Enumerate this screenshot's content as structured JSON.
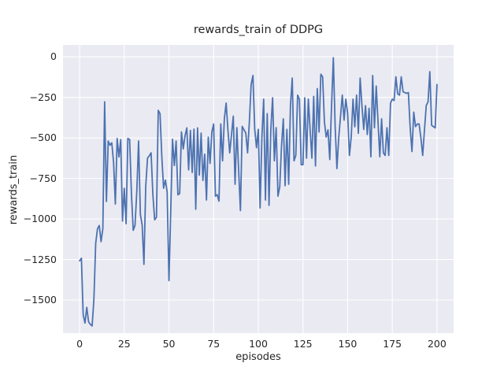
{
  "title": "rewards_train of DDPG",
  "x_axis_label": "episodes",
  "y_axis_label": "rewards_train",
  "colors": {
    "line": "#4c72b0",
    "plot_background": "#eaeaf2",
    "gridline": "#ffffff",
    "text": "#262626",
    "figure_background": "#ffffff"
  },
  "chart_data": {
    "type": "line",
    "title": "rewards_train of DDPG",
    "xlabel": "episodes",
    "ylabel": "rewards_train",
    "grid": true,
    "legend_position": "none",
    "x_ticks": [
      0,
      25,
      50,
      75,
      100,
      125,
      150,
      175,
      200
    ],
    "y_ticks": [
      0,
      -250,
      -500,
      -750,
      -1000,
      -1250,
      -1500
    ],
    "xlim": [
      -9.3,
      209.3
    ],
    "ylim": [
      -1704,
      74
    ],
    "x_start": 0,
    "x_step": 1,
    "series_name": "rewards_train",
    "values": [
      -1258,
      -1242,
      -1590,
      -1642,
      -1545,
      -1634,
      -1650,
      -1660,
      -1495,
      -1150,
      -1060,
      -1040,
      -1140,
      -1060,
      -277,
      -892,
      -519,
      -545,
      -530,
      -649,
      -908,
      -503,
      -617,
      -510,
      -1013,
      -811,
      -1029,
      -503,
      -510,
      -843,
      -1070,
      -1040,
      -830,
      -519,
      -972,
      -1037,
      -1280,
      -800,
      -625,
      -610,
      -592,
      -850,
      -1005,
      -989,
      -330,
      -350,
      -614,
      -810,
      -760,
      -835,
      -1380,
      -950,
      -508,
      -670,
      -519,
      -851,
      -843,
      -463,
      -568,
      -487,
      -438,
      -697,
      -454,
      -713,
      -446,
      -940,
      -438,
      -729,
      -470,
      -762,
      -600,
      -883,
      -495,
      -657,
      -463,
      -414,
      -859,
      -850,
      -890,
      -414,
      -641,
      -382,
      -285,
      -450,
      -592,
      -480,
      -366,
      -786,
      -437,
      -700,
      -948,
      -429,
      -450,
      -469,
      -592,
      -400,
      -171,
      -115,
      -447,
      -560,
      -447,
      -932,
      -500,
      -261,
      -883,
      -350,
      -916,
      -450,
      -252,
      -641,
      -437,
      -859,
      -802,
      -550,
      -382,
      -795,
      -447,
      -786,
      -300,
      -131,
      -641,
      -608,
      -236,
      -261,
      -665,
      -665,
      -252,
      -625,
      -261,
      -450,
      -625,
      -244,
      -673,
      -196,
      -463,
      -107,
      -123,
      -400,
      -495,
      -450,
      -633,
      -300,
      -5,
      -428,
      -689,
      -500,
      -370,
      -236,
      -390,
      -261,
      -350,
      -608,
      -495,
      -261,
      -431,
      -236,
      -471,
      -131,
      -300,
      -447,
      -301,
      -479,
      -317,
      -616,
      -115,
      -437,
      -180,
      -400,
      -616,
      -382,
      -592,
      -608,
      -437,
      -608,
      -285,
      -261,
      -269,
      -123,
      -228,
      -236,
      -123,
      -215,
      -220,
      -225,
      -220,
      -438,
      -584,
      -341,
      -430,
      -414,
      -414,
      -500,
      -608,
      -450,
      -300,
      -277,
      -91,
      -422,
      -430,
      -438,
      -170
    ]
  }
}
